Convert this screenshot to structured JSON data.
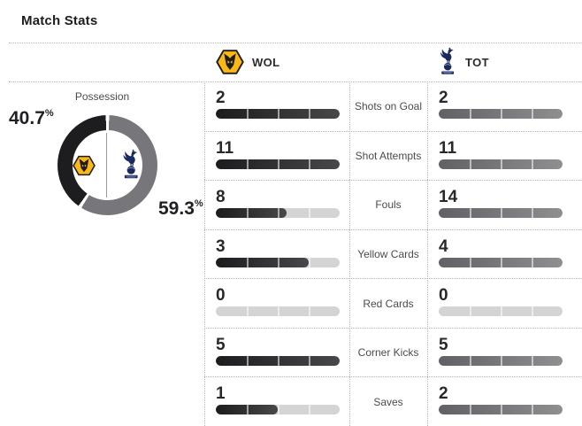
{
  "title": "Match Stats",
  "teams": {
    "home": {
      "abbr": "WOL"
    },
    "away": {
      "abbr": "TOT"
    }
  },
  "possession": {
    "label": "Possession",
    "home_pct": "40.7",
    "away_pct": "59.3",
    "percent_sign": "%"
  },
  "stats": [
    {
      "label": "Shots on Goal",
      "home_value": "2",
      "away_value": "2",
      "home_fill_pct": 100,
      "away_fill_pct": 100
    },
    {
      "label": "Shot Attempts",
      "home_value": "11",
      "away_value": "11",
      "home_fill_pct": 100,
      "away_fill_pct": 100
    },
    {
      "label": "Fouls",
      "home_value": "8",
      "away_value": "14",
      "home_fill_pct": 57,
      "away_fill_pct": 100
    },
    {
      "label": "Yellow Cards",
      "home_value": "3",
      "away_value": "4",
      "home_fill_pct": 75,
      "away_fill_pct": 100
    },
    {
      "label": "Red Cards",
      "home_value": "0",
      "away_value": "0",
      "home_fill_pct": 0,
      "away_fill_pct": 0
    },
    {
      "label": "Corner Kicks",
      "home_value": "5",
      "away_value": "5",
      "home_fill_pct": 100,
      "away_fill_pct": 100
    },
    {
      "label": "Saves",
      "home_value": "1",
      "away_value": "2",
      "home_fill_pct": 50,
      "away_fill_pct": 100
    }
  ],
  "colors": {
    "home_bar_start": "#1c1c1e",
    "home_bar_end": "#48484b",
    "away_bar_start": "#616165",
    "away_bar_end": "#8f8f92",
    "track": "#d4d4d4",
    "donut_home": "#1d1d1f",
    "donut_away": "#77767a",
    "wolves_gold": "#FDB913",
    "spurs_navy": "#1b2a5e"
  },
  "chart_data": [
    {
      "type": "pie",
      "style": "donut",
      "title": "Possession",
      "labels": [
        "WOL",
        "TOT"
      ],
      "values": [
        40.7,
        59.3
      ],
      "unit": "%",
      "colors": [
        "#1d1d1f",
        "#77767a"
      ],
      "annotations": [
        "40.7%",
        "59.3%"
      ]
    },
    {
      "type": "bar",
      "title": "Match Stats",
      "categories": [
        "Shots on Goal",
        "Shot Attempts",
        "Fouls",
        "Yellow Cards",
        "Red Cards",
        "Corner Kicks",
        "Saves"
      ],
      "series": [
        {
          "name": "WOL",
          "values": [
            2,
            11,
            8,
            3,
            0,
            5,
            1
          ]
        },
        {
          "name": "TOT",
          "values": [
            2,
            11,
            14,
            4,
            0,
            5,
            2
          ]
        }
      ],
      "layout": "paired horizontal segmented bars per category, fill proportional to category max, WOL dark / TOT gray"
    }
  ]
}
